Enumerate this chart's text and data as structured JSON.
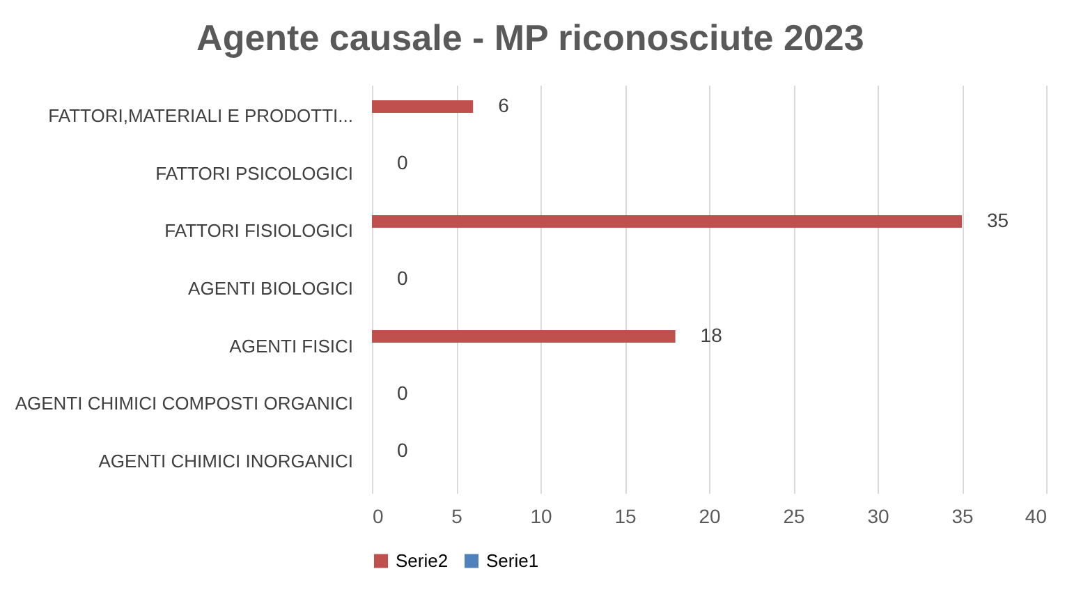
{
  "chart_data": {
    "type": "bar",
    "orientation": "horizontal",
    "title": "Agente causale - MP riconosciute 2023",
    "categories": [
      "FATTORI,MATERIALI E PRODOTTI...",
      "FATTORI PSICOLOGICI",
      "FATTORI FISIOLOGICI",
      "AGENTI BIOLOGICI",
      "AGENTI FISICI",
      "AGENTI CHIMICI COMPOSTI ORGANICI",
      "AGENTI CHIMICI INORGANICI"
    ],
    "series": [
      {
        "name": "Serie2",
        "color": "#c0504d",
        "values": [
          6,
          0,
          35,
          0,
          18,
          0,
          0
        ]
      },
      {
        "name": "Serie1",
        "color": "#4f81bd",
        "values": [
          null,
          null,
          null,
          null,
          null,
          null,
          null
        ]
      }
    ],
    "xlim": [
      0,
      40
    ],
    "xticks": [
      0,
      5,
      10,
      15,
      20,
      25,
      30,
      35,
      40
    ],
    "grid": "x",
    "legend": "bottom",
    "data_labels": true
  }
}
